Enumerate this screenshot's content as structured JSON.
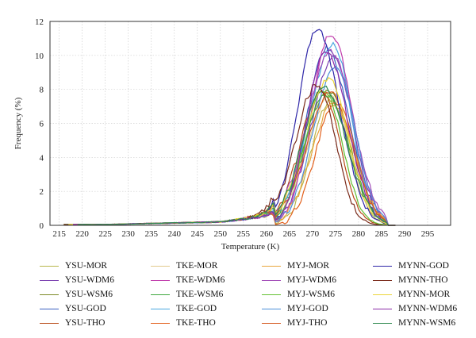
{
  "chart_data": {
    "type": "line",
    "title": "",
    "xlabel": "Temperature (K)",
    "ylabel": "Frequency (%)",
    "xlim": [
      213,
      300
    ],
    "ylim": [
      0,
      12
    ],
    "xticks": [
      215,
      220,
      225,
      230,
      235,
      240,
      245,
      250,
      255,
      260,
      265,
      270,
      275,
      280,
      285,
      290,
      295
    ],
    "yticks": [
      0,
      2,
      4,
      6,
      8,
      10,
      12
    ],
    "grid": true,
    "legend_position": "below",
    "series": [
      {
        "name": "YSU-MOR",
        "color": "#b8b64a",
        "peak_x": 274,
        "peak_y": 7.4,
        "tail": 2.1
      },
      {
        "name": "YSU-WDM6",
        "color": "#7a3fb0",
        "peak_x": 274.5,
        "peak_y": 9.9,
        "tail": 1.9
      },
      {
        "name": "YSU-WSM6",
        "color": "#7c8a26",
        "peak_x": 273.5,
        "peak_y": 7.9,
        "tail": 2.0
      },
      {
        "name": "YSU-GOD",
        "color": "#3a5fc0",
        "peak_x": 273,
        "peak_y": 10.4,
        "tail": 1.8
      },
      {
        "name": "YSU-THO",
        "color": "#b84a17",
        "peak_x": 272,
        "peak_y": 7.9,
        "tail": 2.2
      },
      {
        "name": "TKE-MOR",
        "color": "#e2c98b",
        "peak_x": 274,
        "peak_y": 7.6,
        "tail": 1.7
      },
      {
        "name": "TKE-WDM6",
        "color": "#c03cac",
        "peak_x": 274,
        "peak_y": 11.3,
        "tail": 1.9
      },
      {
        "name": "TKE-WSM6",
        "color": "#3ea73e",
        "peak_x": 273,
        "peak_y": 7.7,
        "tail": 2.1
      },
      {
        "name": "TKE-GOD",
        "color": "#48a6e0",
        "peak_x": 274.5,
        "peak_y": 10.6,
        "tail": 1.9
      },
      {
        "name": "TKE-THO",
        "color": "#e2601c",
        "peak_x": 275,
        "peak_y": 7.3,
        "tail": 2.0
      },
      {
        "name": "MYJ-MOR",
        "color": "#e8a63c",
        "peak_x": 274.5,
        "peak_y": 7.1,
        "tail": 1.9
      },
      {
        "name": "MYJ-WDM6",
        "color": "#a24cb8",
        "peak_x": 274,
        "peak_y": 10.2,
        "tail": 1.7
      },
      {
        "name": "MYJ-WSM6",
        "color": "#63c032",
        "peak_x": 272.5,
        "peak_y": 8.0,
        "tail": 2.0
      },
      {
        "name": "MYJ-GOD",
        "color": "#4b8fd8",
        "peak_x": 275,
        "peak_y": 9.4,
        "tail": 1.8
      },
      {
        "name": "MYJ-THO",
        "color": "#d4581e",
        "peak_x": 274,
        "peak_y": 7.8,
        "tail": 2.1
      },
      {
        "name": "MYNN-GOD",
        "color": "#2e26a8",
        "peak_x": 271,
        "peak_y": 11.5,
        "tail": 1.6
      },
      {
        "name": "MYNN-THO",
        "color": "#7a2a1a",
        "peak_x": 271,
        "peak_y": 8.3,
        "tail": 1.8
      },
      {
        "name": "MYNN-MOR",
        "color": "#ecd63a",
        "peak_x": 273.5,
        "peak_y": 8.6,
        "tail": 1.9
      },
      {
        "name": "MYNN-WDM6",
        "color": "#8a2aa8",
        "peak_x": 273,
        "peak_y": 10.3,
        "tail": 1.7
      },
      {
        "name": "MYNN-WSM6",
        "color": "#2f8a4f",
        "peak_x": 272.5,
        "peak_y": 8.1,
        "tail": 2.0
      }
    ]
  }
}
